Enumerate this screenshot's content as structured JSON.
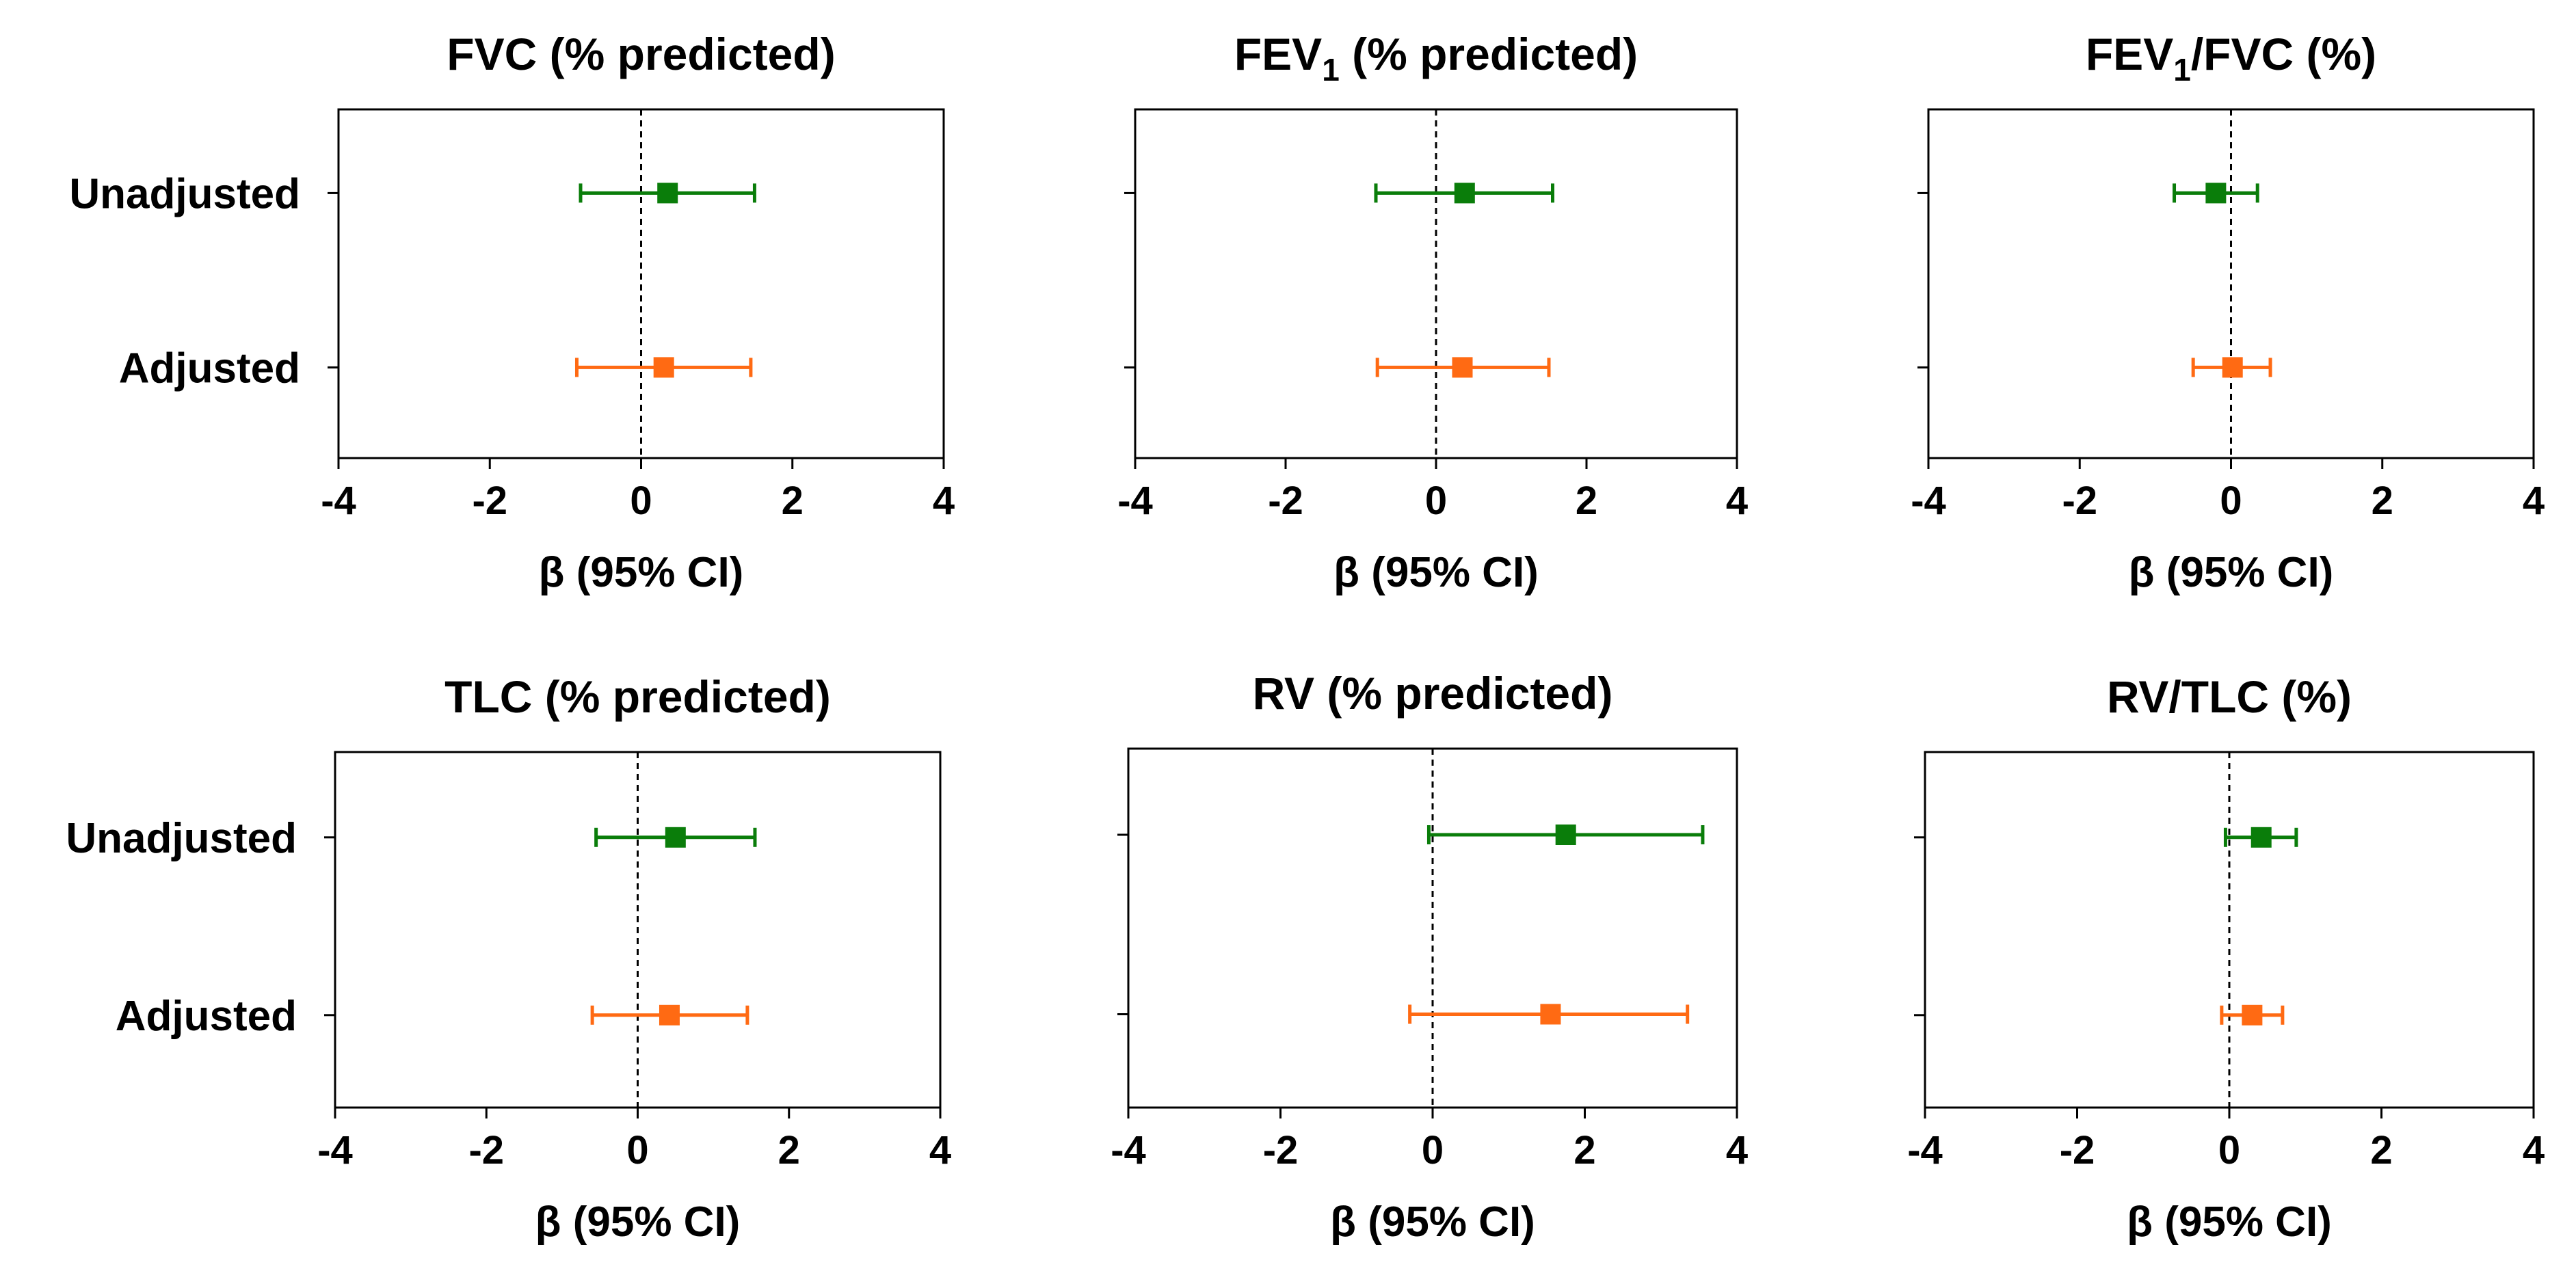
{
  "colors": {
    "unadjusted": "#0a7d0a",
    "adjusted": "#ff6a13"
  },
  "chart_data": [
    {
      "type": "scatter",
      "title": "FVC (% predicted)",
      "title_main": "FVC (% predicted)",
      "title_sub": "",
      "title_tail": "",
      "xlabel": "β (95% CI)",
      "xlim": [
        -4,
        4
      ],
      "x_ticks": [
        "-4",
        "-2",
        "0",
        "2",
        "4"
      ],
      "categories": [
        "Unadjusted",
        "Adjusted"
      ],
      "reference_line": 0,
      "series": [
        {
          "name": "Unadjusted",
          "estimate": 0.35,
          "lower": -0.8,
          "upper": 1.5
        },
        {
          "name": "Adjusted",
          "estimate": 0.3,
          "lower": -0.85,
          "upper": 1.45
        }
      ]
    },
    {
      "type": "scatter",
      "title": "FEV1 (% predicted)",
      "title_main": "FEV",
      "title_sub": "1",
      "title_tail": " (% predicted)",
      "xlabel": "β (95% CI)",
      "xlim": [
        -4,
        4
      ],
      "x_ticks": [
        "-4",
        "-2",
        "0",
        "2",
        "4"
      ],
      "categories": [
        "Unadjusted",
        "Adjusted"
      ],
      "reference_line": 0,
      "series": [
        {
          "name": "Unadjusted",
          "estimate": 0.38,
          "lower": -0.8,
          "upper": 1.55
        },
        {
          "name": "Adjusted",
          "estimate": 0.35,
          "lower": -0.78,
          "upper": 1.5
        }
      ]
    },
    {
      "type": "scatter",
      "title": "FEV1/FVC (%)",
      "title_main": "FEV",
      "title_sub": "1",
      "title_tail": "/FVC (%)",
      "xlabel": "β (95% CI)",
      "xlim": [
        -4,
        4
      ],
      "x_ticks": [
        "-4",
        "-2",
        "0",
        "2",
        "4"
      ],
      "categories": [
        "Unadjusted",
        "Adjusted"
      ],
      "reference_line": 0,
      "series": [
        {
          "name": "Unadjusted",
          "estimate": -0.2,
          "lower": -0.75,
          "upper": 0.35
        },
        {
          "name": "Adjusted",
          "estimate": 0.02,
          "lower": -0.5,
          "upper": 0.52
        }
      ]
    },
    {
      "type": "scatter",
      "title": "TLC (% predicted)",
      "title_main": "TLC (% predicted)",
      "title_sub": "",
      "title_tail": "",
      "xlabel": "β (95% CI)",
      "xlim": [
        -4,
        4
      ],
      "x_ticks": [
        "-4",
        "-2",
        "0",
        "2",
        "4"
      ],
      "categories": [
        "Unadjusted",
        "Adjusted"
      ],
      "reference_line": 0,
      "series": [
        {
          "name": "Unadjusted",
          "estimate": 0.5,
          "lower": -0.55,
          "upper": 1.55
        },
        {
          "name": "Adjusted",
          "estimate": 0.42,
          "lower": -0.6,
          "upper": 1.45
        }
      ]
    },
    {
      "type": "scatter",
      "title": "RV (% predicted)",
      "title_main": "RV (% predicted)",
      "title_sub": "",
      "title_tail": "",
      "xlabel": "β (95% CI)",
      "xlim": [
        -4,
        4
      ],
      "x_ticks": [
        "-4",
        "-2",
        "0",
        "2",
        "4"
      ],
      "categories": [
        "Unadjusted",
        "Adjusted"
      ],
      "reference_line": 0,
      "series": [
        {
          "name": "Unadjusted",
          "estimate": 1.75,
          "lower": -0.05,
          "upper": 3.55
        },
        {
          "name": "Adjusted",
          "estimate": 1.55,
          "lower": -0.3,
          "upper": 3.35
        }
      ]
    },
    {
      "type": "scatter",
      "title": "RV/TLC (%)",
      "title_main": "RV/TLC (%)",
      "title_sub": "",
      "title_tail": "",
      "xlabel": "β (95% CI)",
      "xlim": [
        -4,
        4
      ],
      "x_ticks": [
        "-4",
        "-2",
        "0",
        "2",
        "4"
      ],
      "categories": [
        "Unadjusted",
        "Adjusted"
      ],
      "reference_line": 0,
      "series": [
        {
          "name": "Unadjusted",
          "estimate": 0.42,
          "lower": -0.05,
          "upper": 0.88
        },
        {
          "name": "Adjusted",
          "estimate": 0.3,
          "lower": -0.1,
          "upper": 0.7
        }
      ]
    }
  ]
}
